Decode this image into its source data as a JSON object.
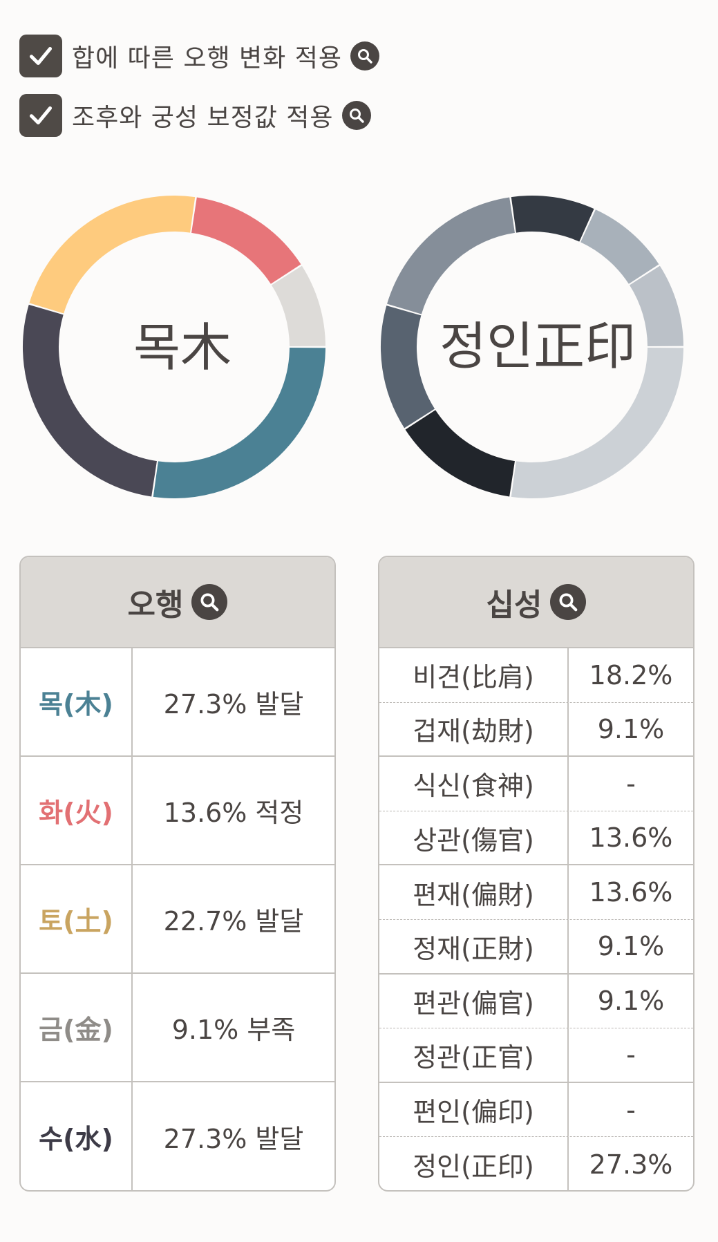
{
  "options": [
    {
      "label": "합에 따른 오행 변화 적용",
      "checked": true
    },
    {
      "label": "조후와 궁성 보정값 적용",
      "checked": true
    }
  ],
  "donut_ohang": {
    "center_label": "목木",
    "segments": [
      {
        "name": "목",
        "value": 27.3,
        "color": "#4b8194"
      },
      {
        "name": "수",
        "value": 27.3,
        "color": "#4a4855"
      },
      {
        "name": "토",
        "value": 22.7,
        "color": "#fecb7e"
      },
      {
        "name": "화",
        "value": 13.6,
        "color": "#e77579"
      },
      {
        "name": "금",
        "value": 9.1,
        "color": "#dddbd8"
      }
    ]
  },
  "donut_sipsung": {
    "center_label": "정인正印",
    "segments": [
      {
        "name": "정인",
        "value": 27.3,
        "color": "#ccd1d6"
      },
      {
        "name": "편재",
        "value": 13.6,
        "color": "#21252b"
      },
      {
        "name": "상관",
        "value": 13.6,
        "color": "#586370"
      },
      {
        "name": "비견",
        "value": 18.2,
        "color": "#858e99"
      },
      {
        "name": "편관",
        "value": 9.1,
        "color": "#343a43"
      },
      {
        "name": "겁재",
        "value": 9.1,
        "color": "#a8b1ba"
      },
      {
        "name": "정재",
        "value": 9.1,
        "color": "#bbc1c8"
      }
    ]
  },
  "ohang_table": {
    "title": "오행",
    "rows": [
      {
        "element": "목(木)",
        "value": "27.3% 발달",
        "color": "#4b8194"
      },
      {
        "element": "화(火)",
        "value": "13.6% 적정",
        "color": "#e27073"
      },
      {
        "element": "토(土)",
        "value": "22.7% 발달",
        "color": "#c9a460"
      },
      {
        "element": "금(金)",
        "value": "9.1% 부족",
        "color": "#8f8c88"
      },
      {
        "element": "수(水)",
        "value": "27.3% 발달",
        "color": "#3d3b47"
      }
    ]
  },
  "sipsung_table": {
    "title": "십성",
    "rows": [
      {
        "name": "비견(比肩)",
        "value": "18.2%"
      },
      {
        "name": "겁재(劫財)",
        "value": "9.1%"
      },
      {
        "name": "식신(食神)",
        "value": "-"
      },
      {
        "name": "상관(傷官)",
        "value": "13.6%"
      },
      {
        "name": "편재(偏財)",
        "value": "13.6%"
      },
      {
        "name": "정재(正財)",
        "value": "9.1%"
      },
      {
        "name": "편관(偏官)",
        "value": "9.1%"
      },
      {
        "name": "정관(正官)",
        "value": "-"
      },
      {
        "name": "편인(偏印)",
        "value": "-"
      },
      {
        "name": "정인(正印)",
        "value": "27.3%"
      }
    ]
  }
}
